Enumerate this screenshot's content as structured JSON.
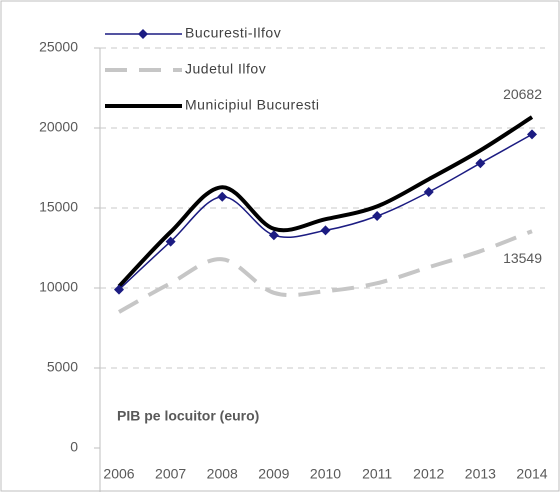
{
  "chart_data": {
    "type": "line",
    "categories": [
      "2006",
      "2007",
      "2008",
      "2009",
      "2010",
      "2011",
      "2012",
      "2013",
      "2014"
    ],
    "series": [
      {
        "name": "Bucuresti-Ilfov",
        "color": "#1c1c82",
        "line_width": 1.5,
        "marker": "diamond",
        "dash": false,
        "values": [
          9900,
          12900,
          15700,
          13300,
          13600,
          14500,
          16000,
          17800,
          19600
        ]
      },
      {
        "name": "Judetul Ilfov",
        "color": "#c6c6c6",
        "line_width": 4,
        "marker": "none",
        "dash": true,
        "values": [
          8500,
          10300,
          11800,
          9700,
          9800,
          10300,
          11300,
          12300,
          13549
        ]
      },
      {
        "name": "Municipiul Bucuresti",
        "color": "#000000",
        "line_width": 4,
        "marker": "none",
        "dash": false,
        "values": [
          10100,
          13500,
          16300,
          13700,
          14300,
          15100,
          16800,
          18600,
          20682
        ]
      }
    ],
    "labeled_points": [
      [
        2,
        8
      ],
      [
        1,
        8
      ]
    ],
    "annotation": "PIB pe locuitor (euro)",
    "ylim": [
      0,
      25000
    ],
    "yticks": [
      0,
      5000,
      10000,
      15000,
      20000,
      25000
    ],
    "grid": true,
    "smooth": true,
    "legend": "top-left"
  }
}
